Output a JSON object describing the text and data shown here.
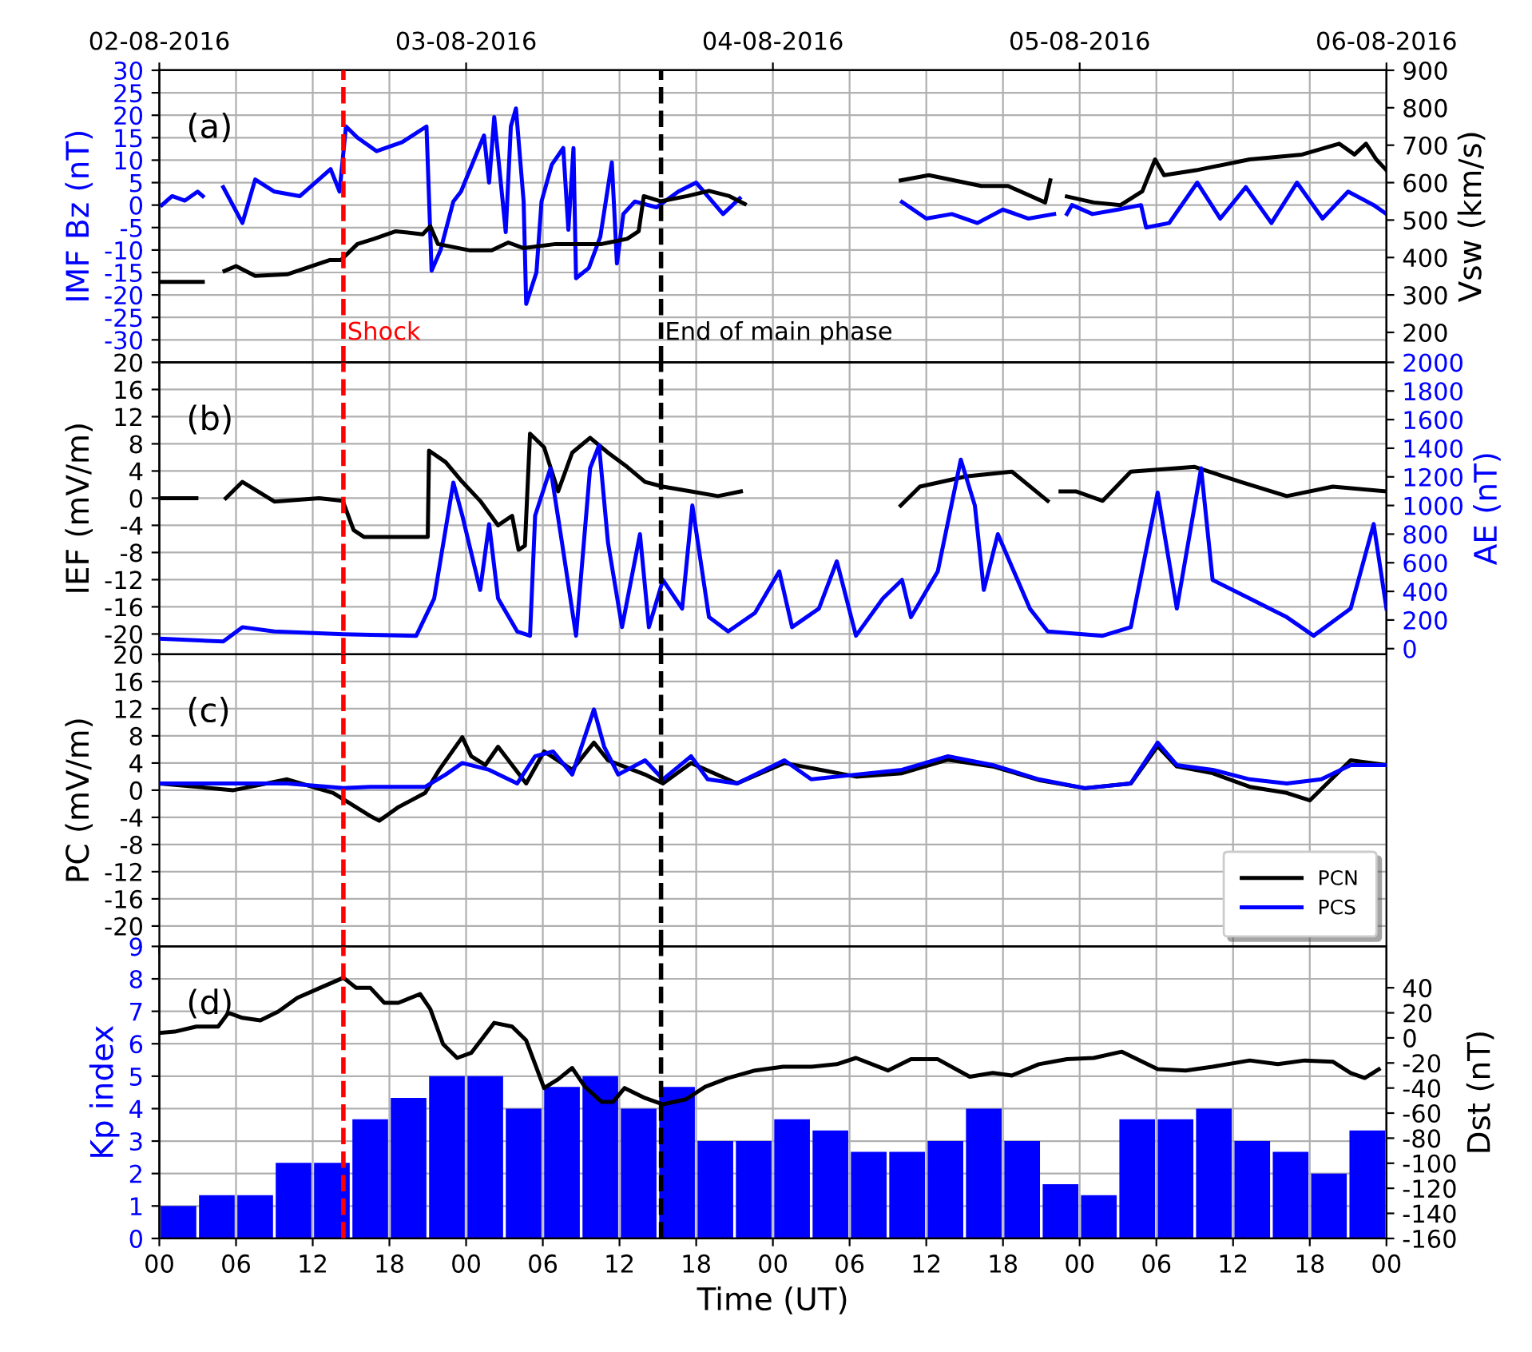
{
  "chart_data": [
    {
      "type": "line",
      "ylabel": "IMF Bz (nT)",
      "y2label": "Vsw (km/s)",
      "annotations": [
        "(a)"
      ],
      "grid": true,
      "tick_labels": "y",
      "xlim": [
        0,
        96
      ],
      "xticks": [
        0,
        6,
        12,
        18,
        24,
        30,
        36,
        42,
        48,
        54,
        60,
        66,
        72,
        78,
        84,
        90,
        96
      ],
      "x2lim": [
        "2016-08-02",
        "2016-08-06"
      ],
      "x2ticks": [
        {
          "value": "2016-08-02",
          "label": "02-08-2016"
        },
        {
          "value": "2016-08-03",
          "label": "03-08-2016"
        },
        {
          "value": "2016-08-04",
          "label": "04-08-2016"
        },
        {
          "value": "2016-08-05",
          "label": "05-08-2016"
        },
        {
          "value": "2016-08-06",
          "label": "06-08-2016"
        }
      ],
      "ylim": [
        -35,
        30
      ],
      "yticks": [
        -30,
        -25,
        -20,
        -15,
        -10,
        -5,
        0,
        5,
        10,
        15,
        20,
        25,
        30
      ],
      "y2lim": [
        120,
        900
      ],
      "y2ticks": [
        200,
        300,
        400,
        500,
        600,
        700,
        800,
        900
      ],
      "ref_lines": [
        {
          "axis": "x",
          "value": 14.4,
          "label": "Shock",
          "color": "#ff0000",
          "line_style": "dashed"
        },
        {
          "axis": "x",
          "value": 39.25,
          "label": "End of main phase",
          "color": "#000000",
          "line_style": "dashed"
        }
      ],
      "series": [
        {
          "color": "#0000ff",
          "axis": "y",
          "x": [
            0.2,
            1,
            2,
            3,
            3.4,
            3.5,
            5,
            6.5,
            7.5,
            9,
            11,
            13.4,
            14.1,
            14.6,
            15.5,
            17,
            19,
            20.9,
            21.3,
            22,
            23,
            23.6,
            25.4,
            25.8,
            26.2,
            27.1,
            27.5,
            27.9,
            28.5,
            28.7,
            29.5,
            29.9,
            30.7,
            31.6,
            32,
            32.4,
            32.6,
            33.6,
            34.5,
            35.4,
            35.8,
            36.3,
            37.2,
            38.9,
            40.6,
            42,
            44.1,
            45.4,
            46,
            58.1,
            60,
            62,
            64,
            66,
            68,
            70,
            70.5,
            71,
            71.4,
            73,
            75,
            76.8,
            77.2,
            79,
            81.2,
            83,
            85,
            87,
            89,
            91,
            93,
            95,
            96
          ],
          "values": [
            0,
            2,
            1,
            3,
            2,
            null,
            4,
            -4,
            5.7,
            3,
            2,
            8,
            3,
            17.5,
            15,
            12,
            14,
            17.5,
            -14.6,
            -10,
            0.8,
            3,
            15.5,
            5,
            19.6,
            -6,
            17.5,
            21.5,
            0.8,
            -22,
            -15,
            0.8,
            9,
            12.7,
            -5.5,
            12.7,
            -16.3,
            -14,
            -7,
            9.5,
            -13,
            -2,
            0.8,
            -0.5,
            3,
            5,
            -2,
            1.5,
            null,
            0.7,
            -3,
            -2,
            -4,
            -1,
            -3,
            -2,
            null,
            -2,
            0,
            -2,
            -1,
            0,
            -5,
            -4,
            5,
            -3,
            4,
            -4,
            5,
            -3,
            3,
            0,
            -2
          ]
        },
        {
          "color": "#000000",
          "axis": "y2",
          "x": [
            0.2,
            3.4,
            3.5,
            5.1,
            6,
            7.5,
            10,
            13.3,
            14.2,
            15.5,
            16.8,
            18.5,
            20.6,
            21.2,
            21.8,
            24.3,
            26,
            27.3,
            28.5,
            31,
            34.6,
            36.6,
            37.5,
            37.9,
            39.2,
            41.3,
            43,
            44.6,
            45.8,
            46,
            58,
            60.2,
            64.3,
            66.4,
            69.3,
            69.7,
            70.2,
            71,
            73.1,
            75.2,
            76.9,
            77.9,
            78.6,
            81.1,
            85.3,
            89.4,
            92.3,
            93.5,
            94.4,
            95.2,
            96
          ],
          "values": [
            335,
            335,
            null,
            364,
            377,
            351,
            355,
            393,
            393,
            436,
            450,
            470,
            462,
            483,
            436,
            419,
            419,
            440,
            425,
            436,
            436,
            450,
            470,
            564,
            550,
            564,
            578,
            564,
            543,
            null,
            606,
            620,
            591,
            591,
            547,
            606,
            null,
            563,
            547,
            540,
            577,
            662,
            620,
            633,
            662,
            675,
            704,
            675,
            704,
            662,
            633
          ]
        }
      ]
    },
    {
      "type": "line",
      "ylabel": "IEF (mV/m)",
      "y2label": "AE (nT)",
      "annotations": [
        "(b)"
      ],
      "grid": true,
      "tick_labels": "y",
      "xlim": [
        0,
        96
      ],
      "xticks": [
        0,
        6,
        12,
        18,
        24,
        30,
        36,
        42,
        48,
        54,
        60,
        66,
        72,
        78,
        84,
        90,
        96
      ],
      "ylim": [
        -23,
        20
      ],
      "yticks": [
        -20,
        -16,
        -12,
        -8,
        -4,
        0,
        4,
        8,
        12,
        16,
        20
      ],
      "y2lim": [
        -40,
        2000
      ],
      "y2ticks": [
        0,
        200,
        400,
        600,
        800,
        1000,
        1200,
        1400,
        1600,
        1800,
        2000
      ],
      "ref_lines": [
        {
          "axis": "x",
          "value": 14.4,
          "color": "#ff0000",
          "line_style": "dashed"
        },
        {
          "axis": "x",
          "value": 39.25,
          "color": "#000000",
          "line_style": "dashed"
        }
      ],
      "series": [
        {
          "color": "#000000",
          "axis": "y",
          "x": [
            0,
            2.9,
            3,
            5.2,
            6.5,
            9,
            12.5,
            14.35,
            15.2,
            16,
            21,
            21.1,
            22.4,
            23.7,
            25.1,
            26.5,
            27.6,
            28.1,
            28.6,
            29,
            30.1,
            31.2,
            32.3,
            33.7,
            35.1,
            36.6,
            38,
            39.4,
            41.6,
            43.7,
            45.5,
            46,
            58,
            59.5,
            63.1,
            66.7,
            69.5,
            69.8,
            70.5,
            71.7,
            73.8,
            76,
            81,
            84.6,
            88.2,
            91.8,
            96
          ],
          "values": [
            0,
            0,
            null,
            0,
            2.4,
            -0.5,
            0,
            -0.4,
            -4.7,
            -5.7,
            -5.7,
            7,
            5.3,
            2.4,
            -0.4,
            -4,
            -2.6,
            -7.6,
            -7,
            9.5,
            7.5,
            1,
            6.7,
            8.9,
            6.7,
            4.6,
            2.4,
            1.7,
            1,
            0.3,
            1,
            null,
            -1.1,
            1.7,
            3.2,
            3.9,
            -0.4,
            null,
            1,
            1,
            -0.4,
            3.9,
            4.6,
            2.4,
            0.3,
            1.7,
            1
          ]
        },
        {
          "color": "#0000ff",
          "axis": "y2",
          "x": [
            0,
            5,
            6.5,
            9,
            14.4,
            20.1,
            21.5,
            23,
            23.7,
            25.1,
            25.8,
            26.5,
            28,
            29,
            29.4,
            30.6,
            31.5,
            32.6,
            33.7,
            34.4,
            35.1,
            36.2,
            37.6,
            38.3,
            39.4,
            40.9,
            41.7,
            43,
            44.5,
            46.6,
            48.5,
            49.5,
            51.6,
            53,
            54.5,
            56.6,
            58.1,
            58.8,
            60.9,
            62.7,
            63.8,
            64.5,
            65.6,
            68.1,
            69.5,
            73.8,
            76,
            78.1,
            79.6,
            81.5,
            82.4,
            85.3,
            88.2,
            90.3,
            93.2,
            95,
            96
          ],
          "values": [
            70,
            50,
            150,
            120,
            100,
            90,
            350,
            1160,
            930,
            410,
            870,
            350,
            120,
            90,
            930,
            1260,
            740,
            90,
            1260,
            1420,
            740,
            150,
            800,
            150,
            480,
            280,
            1000,
            220,
            120,
            250,
            540,
            150,
            280,
            610,
            90,
            350,
            480,
            220,
            540,
            1320,
            1000,
            410,
            800,
            280,
            120,
            90,
            150,
            1090,
            280,
            1260,
            480,
            350,
            220,
            90,
            280,
            870,
            280
          ]
        }
      ]
    },
    {
      "type": "line",
      "ylabel": "PC (mV/m)",
      "annotations": [
        "(c)"
      ],
      "grid": true,
      "tick_labels": "y",
      "legend": "bottom right",
      "xlim": [
        0,
        96
      ],
      "xticks": [
        0,
        6,
        12,
        18,
        24,
        30,
        36,
        42,
        48,
        54,
        60,
        66,
        72,
        78,
        84,
        90,
        96
      ],
      "ylim": [
        -23,
        20
      ],
      "yticks": [
        -20,
        -16,
        -12,
        -8,
        -4,
        0,
        4,
        8,
        12,
        16,
        20
      ],
      "ref_lines": [
        {
          "axis": "x",
          "value": 14.4,
          "color": "#ff0000",
          "line_style": "dashed"
        },
        {
          "axis": "x",
          "value": 39.25,
          "color": "#000000",
          "line_style": "dashed"
        }
      ],
      "series": [
        {
          "name": "PCN",
          "color": "#000000",
          "axis": "y",
          "x": [
            0,
            5.8,
            10,
            13.6,
            16.5,
            17.2,
            18.7,
            20.8,
            21.9,
            23.7,
            24.4,
            25.5,
            26.5,
            28.7,
            30.1,
            32.3,
            34,
            35.1,
            38,
            39.4,
            41.6,
            45.2,
            48.9,
            54.5,
            58.1,
            61.7,
            65.2,
            68.8,
            72.4,
            76,
            78.1,
            79.6,
            82.4,
            85.3,
            88.2,
            90,
            93.2,
            96
          ],
          "values": [
            1,
            0,
            1.6,
            -0.4,
            -3.8,
            -4.5,
            -2.5,
            -0.4,
            3,
            7.8,
            5,
            3.7,
            6.4,
            1,
            5.7,
            3,
            7,
            4.4,
            2.3,
            1,
            4,
            1,
            4,
            2,
            2.5,
            4.5,
            3.5,
            1.5,
            0.3,
            1,
            6.5,
            3.5,
            2.5,
            0.5,
            -0.4,
            -1.5,
            4.4,
            3.7
          ]
        },
        {
          "name": "PCS",
          "color": "#0000ff",
          "axis": "y",
          "x": [
            0,
            5.8,
            10,
            14.4,
            16.5,
            20.8,
            22.4,
            23.7,
            25.8,
            28,
            29.4,
            30.8,
            32.3,
            34,
            34.8,
            35.9,
            38,
            39.4,
            41.6,
            42.9,
            45.2,
            48.9,
            51,
            54.5,
            58.1,
            61.7,
            65.2,
            68.8,
            72.4,
            76,
            78.1,
            79.6,
            82.4,
            85.3,
            88.2,
            90.9,
            93.2,
            96
          ],
          "values": [
            1,
            1,
            1,
            0.3,
            0.5,
            0.5,
            2.3,
            4,
            3,
            1,
            5,
            5.7,
            2.3,
            11.9,
            6.4,
            2.3,
            4.4,
            1.6,
            5,
            1.6,
            1,
            4.4,
            1.6,
            2.3,
            3,
            5,
            3.7,
            1.6,
            0.3,
            1,
            7,
            3.7,
            3,
            1.6,
            1,
            1.6,
            3.7,
            3.7
          ]
        }
      ]
    },
    {
      "type": "bar",
      "xlabel": "Time (UT)",
      "ylabel": "Kp index",
      "y2label": "Dst (nT)",
      "annotations": [
        "(d)"
      ],
      "grid": true,
      "xlim": [
        0,
        96
      ],
      "xticks": [
        {
          "value": 0,
          "label": "00"
        },
        {
          "value": 6,
          "label": "06"
        },
        {
          "value": 12,
          "label": "12"
        },
        {
          "value": 18,
          "label": "18"
        },
        {
          "value": 24,
          "label": "00"
        },
        {
          "value": 30,
          "label": "06"
        },
        {
          "value": 36,
          "label": "12"
        },
        {
          "value": 42,
          "label": "18"
        },
        {
          "value": 48,
          "label": "00"
        },
        {
          "value": 54,
          "label": "06"
        },
        {
          "value": 60,
          "label": "12"
        },
        {
          "value": 66,
          "label": "18"
        },
        {
          "value": 72,
          "label": "00"
        },
        {
          "value": 78,
          "label": "06"
        },
        {
          "value": 84,
          "label": "12"
        },
        {
          "value": 90,
          "label": "18"
        },
        {
          "value": 96,
          "label": "00"
        }
      ],
      "ylim": [
        0,
        9
      ],
      "yticks": [
        0,
        1,
        2,
        3,
        4,
        5,
        6,
        7,
        8,
        9
      ],
      "y2lim": [
        -160,
        73
      ],
      "y2ticks": [
        -160,
        -140,
        -120,
        -100,
        -80,
        -60,
        -40,
        -20,
        0,
        20,
        40
      ],
      "ref_lines": [
        {
          "axis": "x",
          "value": 14.4,
          "color": "#ff0000",
          "line_style": "dashed"
        },
        {
          "axis": "x",
          "value": 39.25,
          "color": "#000000",
          "line_style": "dashed"
        }
      ],
      "series": [
        {
          "type": "bar",
          "color": "#0000ff",
          "axis": "y",
          "x": [
            1.5,
            4.5,
            7.5,
            10.5,
            13.5,
            16.5,
            19.5,
            22.5,
            25.5,
            28.5,
            31.5,
            34.5,
            37.5,
            40.5,
            43.5,
            46.5,
            49.5,
            52.5,
            55.5,
            58.5,
            61.5,
            64.5,
            67.5,
            70.5,
            73.5,
            76.5,
            79.5,
            82.5,
            85.5,
            88.5,
            91.5,
            94.5
          ],
          "values": [
            1,
            1.33,
            1.33,
            2.33,
            2.33,
            3.67,
            4.33,
            5,
            5,
            4,
            4.67,
            5,
            4,
            4.67,
            3,
            3,
            3.67,
            3.33,
            2.67,
            2.67,
            3,
            4,
            3,
            1.67,
            1.33,
            3.67,
            3.67,
            4,
            3,
            2.67,
            2,
            3.33
          ]
        },
        {
          "type": "line",
          "color": "#000000",
          "axis": "y2",
          "x": [
            0,
            1.2,
            2.9,
            4.6,
            5.4,
            6.5,
            7.9,
            9.3,
            10.8,
            12.6,
            14.4,
            15.4,
            16.5,
            17.6,
            18.7,
            20.4,
            21.2,
            22.2,
            23.3,
            24.4,
            26.2,
            27.6,
            28.7,
            30.1,
            31.2,
            32.3,
            33.3,
            34.6,
            35.5,
            36.4,
            38,
            39.4,
            41.2,
            42.7,
            44.5,
            46.6,
            48.8,
            51,
            53,
            54.5,
            57,
            58.8,
            60.9,
            63.4,
            65.2,
            66.7,
            68.8,
            71,
            73.1,
            75.3,
            78.1,
            80.3,
            82.4,
            85.3,
            87.5,
            89.6,
            91.8,
            93.2,
            94.3,
            95.4
          ],
          "values": [
            4,
            5,
            9,
            9,
            20,
            16,
            14,
            21,
            32,
            40,
            48,
            40,
            40,
            28,
            28,
            35,
            23,
            -5,
            -16,
            -12,
            12,
            9,
            -2,
            -40,
            -33,
            -24,
            -39,
            -51,
            -51,
            -40,
            -48,
            -53,
            -49,
            -39,
            -32,
            -26,
            -23,
            -23,
            -21,
            -16,
            -26,
            -17,
            -17,
            -31,
            -28,
            -30,
            -21,
            -17,
            -16,
            -11,
            -25,
            -26,
            -23,
            -18,
            -21,
            -18,
            -19,
            -28,
            -32,
            -25
          ]
        }
      ]
    }
  ]
}
